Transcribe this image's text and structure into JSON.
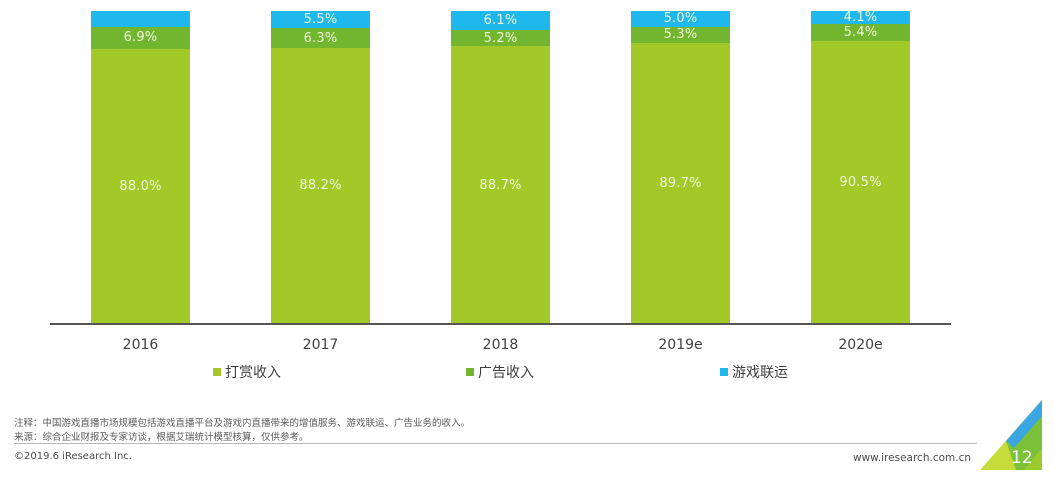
{
  "chart_data": {
    "type": "bar",
    "stacked": true,
    "normalized_percent": true,
    "title": "",
    "xlabel": "",
    "ylabel": "",
    "ylim": [
      0,
      100
    ],
    "grid": false,
    "legend_position": "bottom",
    "categories": [
      "2016",
      "2017",
      "2018",
      "2019e",
      "2020e"
    ],
    "series": [
      {
        "name": "打赏收入",
        "color": "#a3c928",
        "values": [
          88.0,
          88.2,
          88.7,
          89.7,
          90.5
        ],
        "labels": [
          "88.0%",
          "88.2%",
          "88.7%",
          "89.7%",
          "90.5%"
        ]
      },
      {
        "name": "广告收入",
        "color": "#72b62f",
        "values": [
          6.9,
          6.3,
          5.2,
          5.3,
          5.4
        ],
        "labels": [
          "6.9%",
          "6.3%",
          "5.2%",
          "5.3%",
          "5.4%"
        ]
      },
      {
        "name": "游戏联运",
        "color": "#1fb8ec",
        "values": [
          5.1,
          5.5,
          6.1,
          5.0,
          4.1
        ],
        "labels": [
          "",
          "5.5%",
          "6.1%",
          "5.0%",
          "4.1%"
        ]
      }
    ]
  },
  "legend": [
    {
      "label": "打赏收入",
      "color": "#a3c928"
    },
    {
      "label": "广告收入",
      "color": "#72b62f"
    },
    {
      "label": "游戏联运",
      "color": "#1fb8ec"
    }
  ],
  "footer": {
    "note": "注释：中国游戏直播市场规模包括游戏直播平台及游戏内直播带来的增值服务、游戏联运、广告业务的收入。",
    "source": "来源：综合企业财报及专家访谈，根据艾瑞统计模型核算，仅供参考。",
    "copyright": "©2019.6 iResearch Inc.",
    "website": "www.iresearch.com.cn",
    "page_number": "12"
  }
}
